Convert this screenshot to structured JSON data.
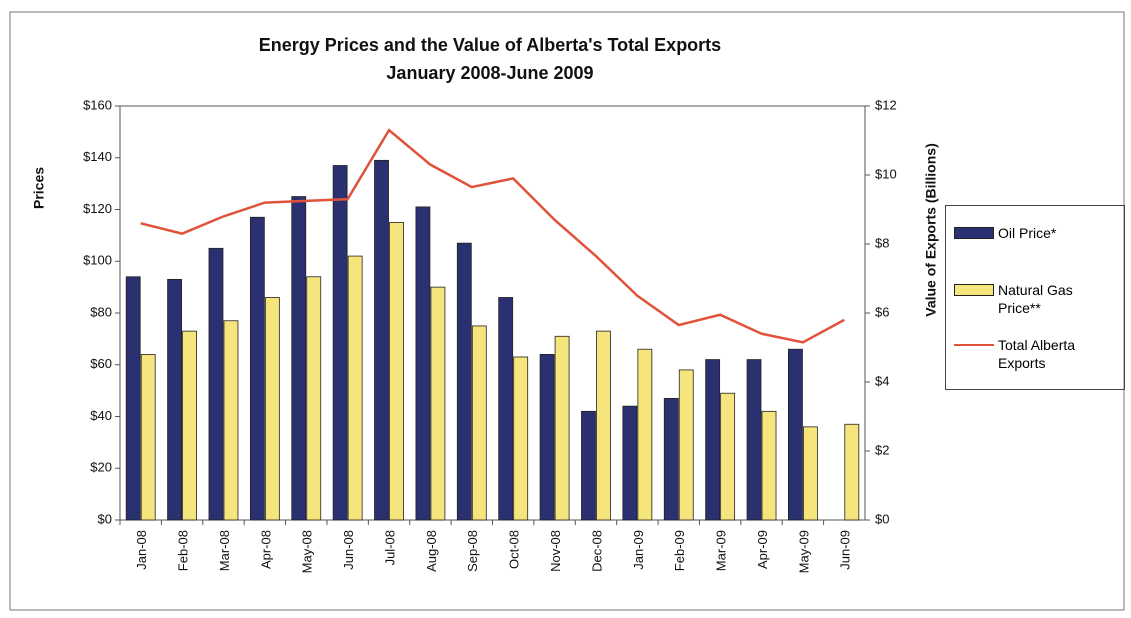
{
  "chart_data": {
    "type": "bar_line",
    "title": "Energy Prices and the Value of Alberta's Total Exports",
    "subtitle": "January 2008-June 2009",
    "y_label": "Prices",
    "y2_label": "Value of Exports (Billions)",
    "categories": [
      "Jan-08",
      "Feb-08",
      "Mar-08",
      "Apr-08",
      "May-08",
      "Jun-08",
      "Jul-08",
      "Aug-08",
      "Sep-08",
      "Oct-08",
      "Nov-08",
      "Dec-08",
      "Jan-09",
      "Feb-09",
      "Mar-09",
      "Apr-09",
      "May-09",
      "Jun-09"
    ],
    "series": [
      {
        "name": "Oil Price*",
        "type": "bar",
        "color": "#2b3070",
        "values": [
          94,
          93,
          105,
          117,
          125,
          137,
          139,
          121,
          107,
          86,
          64,
          42,
          44,
          47,
          62,
          62,
          66,
          null
        ]
      },
      {
        "name": "Natural Gas Price**",
        "type": "bar",
        "color": "#f6e57c",
        "values": [
          64,
          73,
          77,
          86,
          94,
          102,
          115,
          90,
          75,
          63,
          71,
          73,
          66,
          58,
          49,
          42,
          36,
          37
        ]
      },
      {
        "name": "Total Alberta Exports",
        "type": "line",
        "axis": "y2",
        "color": "#e0533a",
        "values": [
          8.6,
          8.3,
          8.8,
          9.2,
          9.25,
          9.3,
          11.3,
          10.3,
          9.65,
          9.9,
          8.7,
          7.65,
          6.5,
          5.65,
          5.95,
          5.4,
          5.15,
          5.8
        ]
      }
    ],
    "ylim": [
      0,
      160
    ],
    "yticks": [
      {
        "value": 0,
        "label": "$0"
      },
      {
        "value": 20,
        "label": "$20"
      },
      {
        "value": 40,
        "label": "$40"
      },
      {
        "value": 60,
        "label": "$60"
      },
      {
        "value": 80,
        "label": "$80"
      },
      {
        "value": 100,
        "label": "$100"
      },
      {
        "value": 120,
        "label": "$120"
      },
      {
        "value": 140,
        "label": "$140"
      },
      {
        "value": 160,
        "label": "$160"
      }
    ],
    "y2lim": [
      0,
      12
    ],
    "y2ticks": [
      {
        "value": 0,
        "label": "$0"
      },
      {
        "value": 2,
        "label": "$2"
      },
      {
        "value": 4,
        "label": "$4"
      },
      {
        "value": 6,
        "label": "$6"
      },
      {
        "value": 8,
        "label": "$8"
      },
      {
        "value": 10,
        "label": "$10"
      },
      {
        "value": 12,
        "label": "$12"
      }
    ],
    "legend": "right"
  }
}
